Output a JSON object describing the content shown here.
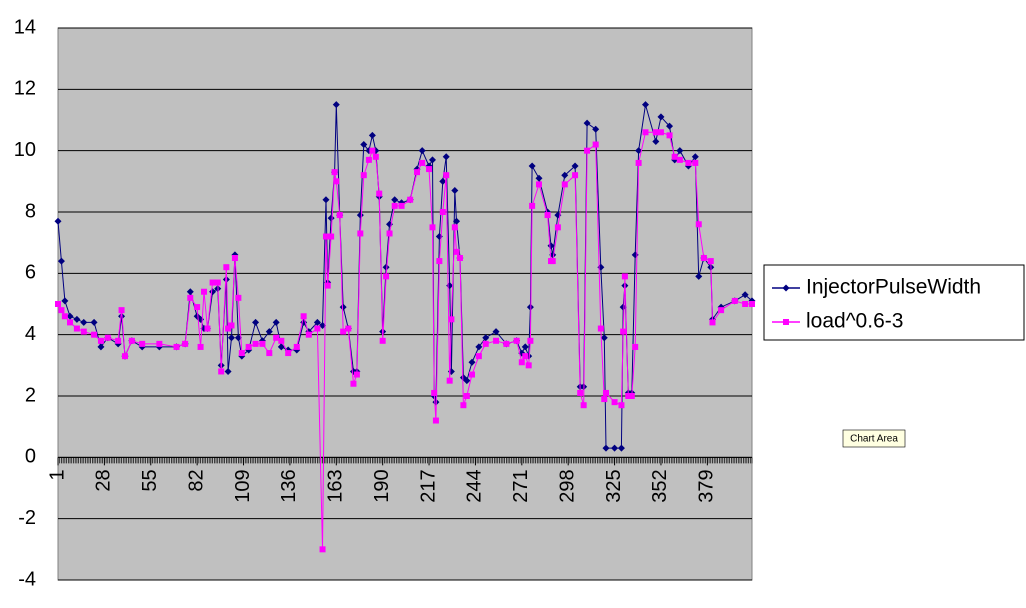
{
  "chart_data": {
    "type": "line",
    "x": [
      1,
      3,
      5,
      8,
      12,
      16,
      22,
      26,
      30,
      36,
      38,
      40,
      44,
      50,
      60,
      70,
      75,
      78,
      82,
      84,
      86,
      88,
      91,
      94,
      96,
      99,
      100,
      102,
      104,
      106,
      108,
      112,
      116,
      120,
      124,
      128,
      131,
      135,
      140,
      144,
      147,
      152,
      155,
      157,
      158,
      160,
      162,
      163,
      165,
      167,
      170,
      173,
      175,
      177,
      179,
      182,
      184,
      186,
      188,
      190,
      192,
      194,
      197,
      201,
      206,
      210,
      213,
      217,
      219,
      220,
      221,
      223,
      225,
      227,
      229,
      230,
      232,
      233,
      235,
      237,
      239,
      242,
      246,
      250,
      256,
      262,
      268,
      271,
      273,
      275,
      276,
      277,
      281,
      286,
      288,
      289,
      292,
      296,
      302,
      305,
      307,
      309,
      314,
      317,
      319,
      320,
      325,
      329,
      330,
      331,
      333,
      335,
      337,
      339,
      343,
      349,
      352,
      357,
      360,
      363,
      368,
      372,
      374,
      377,
      381,
      382,
      387,
      395,
      401,
      405
    ],
    "series": [
      {
        "name": "InjectorPulseWidth",
        "color": "#000080",
        "marker": "diamond",
        "values": [
          7.7,
          6.4,
          5.1,
          4.6,
          4.5,
          4.4,
          4.4,
          3.6,
          3.9,
          3.7,
          4.6,
          3.3,
          3.8,
          3.6,
          3.6,
          3.6,
          3.7,
          5.4,
          4.6,
          4.5,
          4.2,
          4.2,
          5.4,
          5.5,
          3.0,
          5.8,
          2.8,
          3.9,
          6.6,
          3.9,
          3.3,
          3.5,
          4.4,
          3.8,
          4.1,
          4.4,
          3.6,
          3.5,
          3.5,
          4.4,
          4.1,
          4.4,
          4.3,
          8.4,
          5.7,
          7.8,
          9.3,
          11.5,
          7.9,
          4.9,
          4.2,
          2.8,
          2.8,
          7.9,
          10.2,
          10.0,
          10.5,
          10.0,
          8.5,
          4.1,
          6.2,
          7.6,
          8.4,
          8.3,
          8.4,
          9.4,
          10.0,
          9.5,
          9.7,
          2.0,
          1.8,
          7.2,
          9.0,
          9.8,
          5.6,
          2.8,
          8.7,
          7.7,
          6.5,
          2.6,
          2.5,
          3.1,
          3.6,
          3.9,
          4.1,
          3.7,
          3.8,
          3.4,
          3.6,
          3.3,
          4.9,
          9.5,
          9.1,
          8.0,
          6.9,
          6.6,
          7.9,
          9.2,
          9.5,
          2.3,
          2.3,
          10.9,
          10.7,
          6.2,
          3.9,
          0.3,
          0.3,
          0.3,
          4.9,
          5.6,
          2.1,
          2.1,
          6.6,
          10.0,
          11.5,
          10.3,
          11.1,
          10.8,
          9.7,
          10.0,
          9.5,
          9.8,
          5.9,
          6.5,
          6.2,
          4.5,
          4.9,
          5.1,
          5.3,
          5.1
        ]
      },
      {
        "name": "load^0.6-3",
        "color": "#ff00ff",
        "marker": "square",
        "values": [
          5.0,
          4.8,
          4.6,
          4.4,
          4.2,
          4.1,
          4.0,
          3.8,
          3.9,
          3.8,
          4.8,
          3.3,
          3.8,
          3.7,
          3.7,
          3.6,
          3.7,
          5.2,
          4.9,
          3.6,
          5.4,
          4.2,
          5.7,
          5.7,
          2.8,
          6.2,
          4.2,
          4.3,
          6.5,
          5.2,
          3.4,
          3.6,
          3.7,
          3.7,
          3.4,
          3.9,
          3.8,
          3.4,
          3.6,
          4.6,
          4.0,
          4.2,
          -3.0,
          7.2,
          5.6,
          7.2,
          9.3,
          9.0,
          7.9,
          4.1,
          4.2,
          2.4,
          2.7,
          7.3,
          9.2,
          9.7,
          10.0,
          9.8,
          8.6,
          3.8,
          5.9,
          7.3,
          8.2,
          8.2,
          8.4,
          9.3,
          9.6,
          9.4,
          7.5,
          2.1,
          1.2,
          6.4,
          8.0,
          9.2,
          2.5,
          4.5,
          7.5,
          6.7,
          6.5,
          1.7,
          2.0,
          2.7,
          3.3,
          3.7,
          3.8,
          3.7,
          3.8,
          3.1,
          3.3,
          3.0,
          3.8,
          8.2,
          8.9,
          7.9,
          6.4,
          6.4,
          7.5,
          8.9,
          9.2,
          2.1,
          1.7,
          10.0,
          10.2,
          4.2,
          1.9,
          2.1,
          1.8,
          1.7,
          4.1,
          5.9,
          2.0,
          2.0,
          3.6,
          9.6,
          10.6,
          10.6,
          10.6,
          10.5,
          9.8,
          9.7,
          9.6,
          9.6,
          7.6,
          6.5,
          6.4,
          4.4,
          4.8,
          5.1,
          5.0,
          5.0
        ]
      }
    ],
    "xlim": [
      1,
      405
    ],
    "xticks": [
      1,
      28,
      55,
      82,
      109,
      136,
      163,
      190,
      217,
      244,
      271,
      298,
      325,
      352,
      379
    ],
    "ylim": [
      -4,
      14
    ],
    "yticks": [
      -4,
      -2,
      0,
      2,
      4,
      6,
      8,
      10,
      12,
      14
    ],
    "grid": true,
    "legend": "right",
    "tooltip": "Chart Area"
  }
}
